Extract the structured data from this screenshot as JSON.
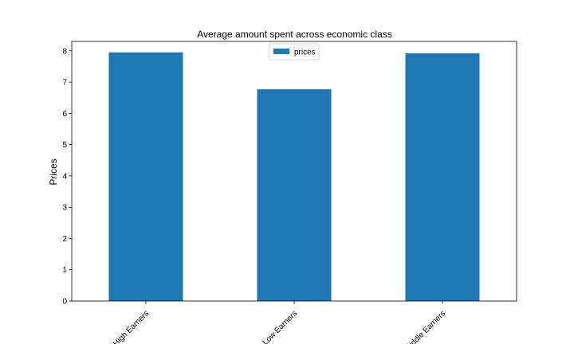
{
  "chart_data": {
    "type": "bar",
    "title": "Average amount spent across economic class",
    "xlabel": "",
    "ylabel": "Prices",
    "categories": [
      "High Earners",
      "Low Earners",
      "Middle Earners"
    ],
    "series": [
      {
        "name": "prices",
        "values": [
          7.95,
          6.77,
          7.92
        ],
        "color": "#1f77b4"
      }
    ],
    "ylim": [
      0,
      8.3
    ],
    "yticks": [
      0,
      1,
      2,
      3,
      4,
      5,
      6,
      7,
      8
    ],
    "grid": false,
    "legend": "top-center"
  }
}
